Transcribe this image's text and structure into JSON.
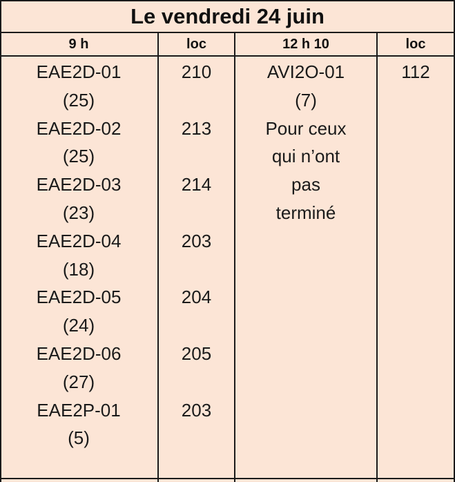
{
  "title": "Le vendredi 24 juin",
  "headers": {
    "col1": "9 h",
    "col2": "loc",
    "col3": "12 h 10",
    "col4": "loc"
  },
  "col1_lines": [
    "EAE2D-01",
    "(25)",
    "EAE2D-02",
    "(25)",
    "EAE2D-03",
    "(23)",
    "EAE2D-04",
    "(18)",
    "EAE2D-05",
    "(24)",
    "EAE2D-06",
    "(27)",
    "EAE2P-01",
    "(5)"
  ],
  "col2_lines": [
    "210",
    "",
    "213",
    "",
    "214",
    "",
    "203",
    "",
    "204",
    "",
    "205",
    "",
    "203",
    ""
  ],
  "col3_lines": [
    "AVI2O-01",
    "(7)",
    "Pour ceux",
    "qui n’ont",
    "pas",
    "terminé"
  ],
  "col4_lines": [
    "112"
  ]
}
